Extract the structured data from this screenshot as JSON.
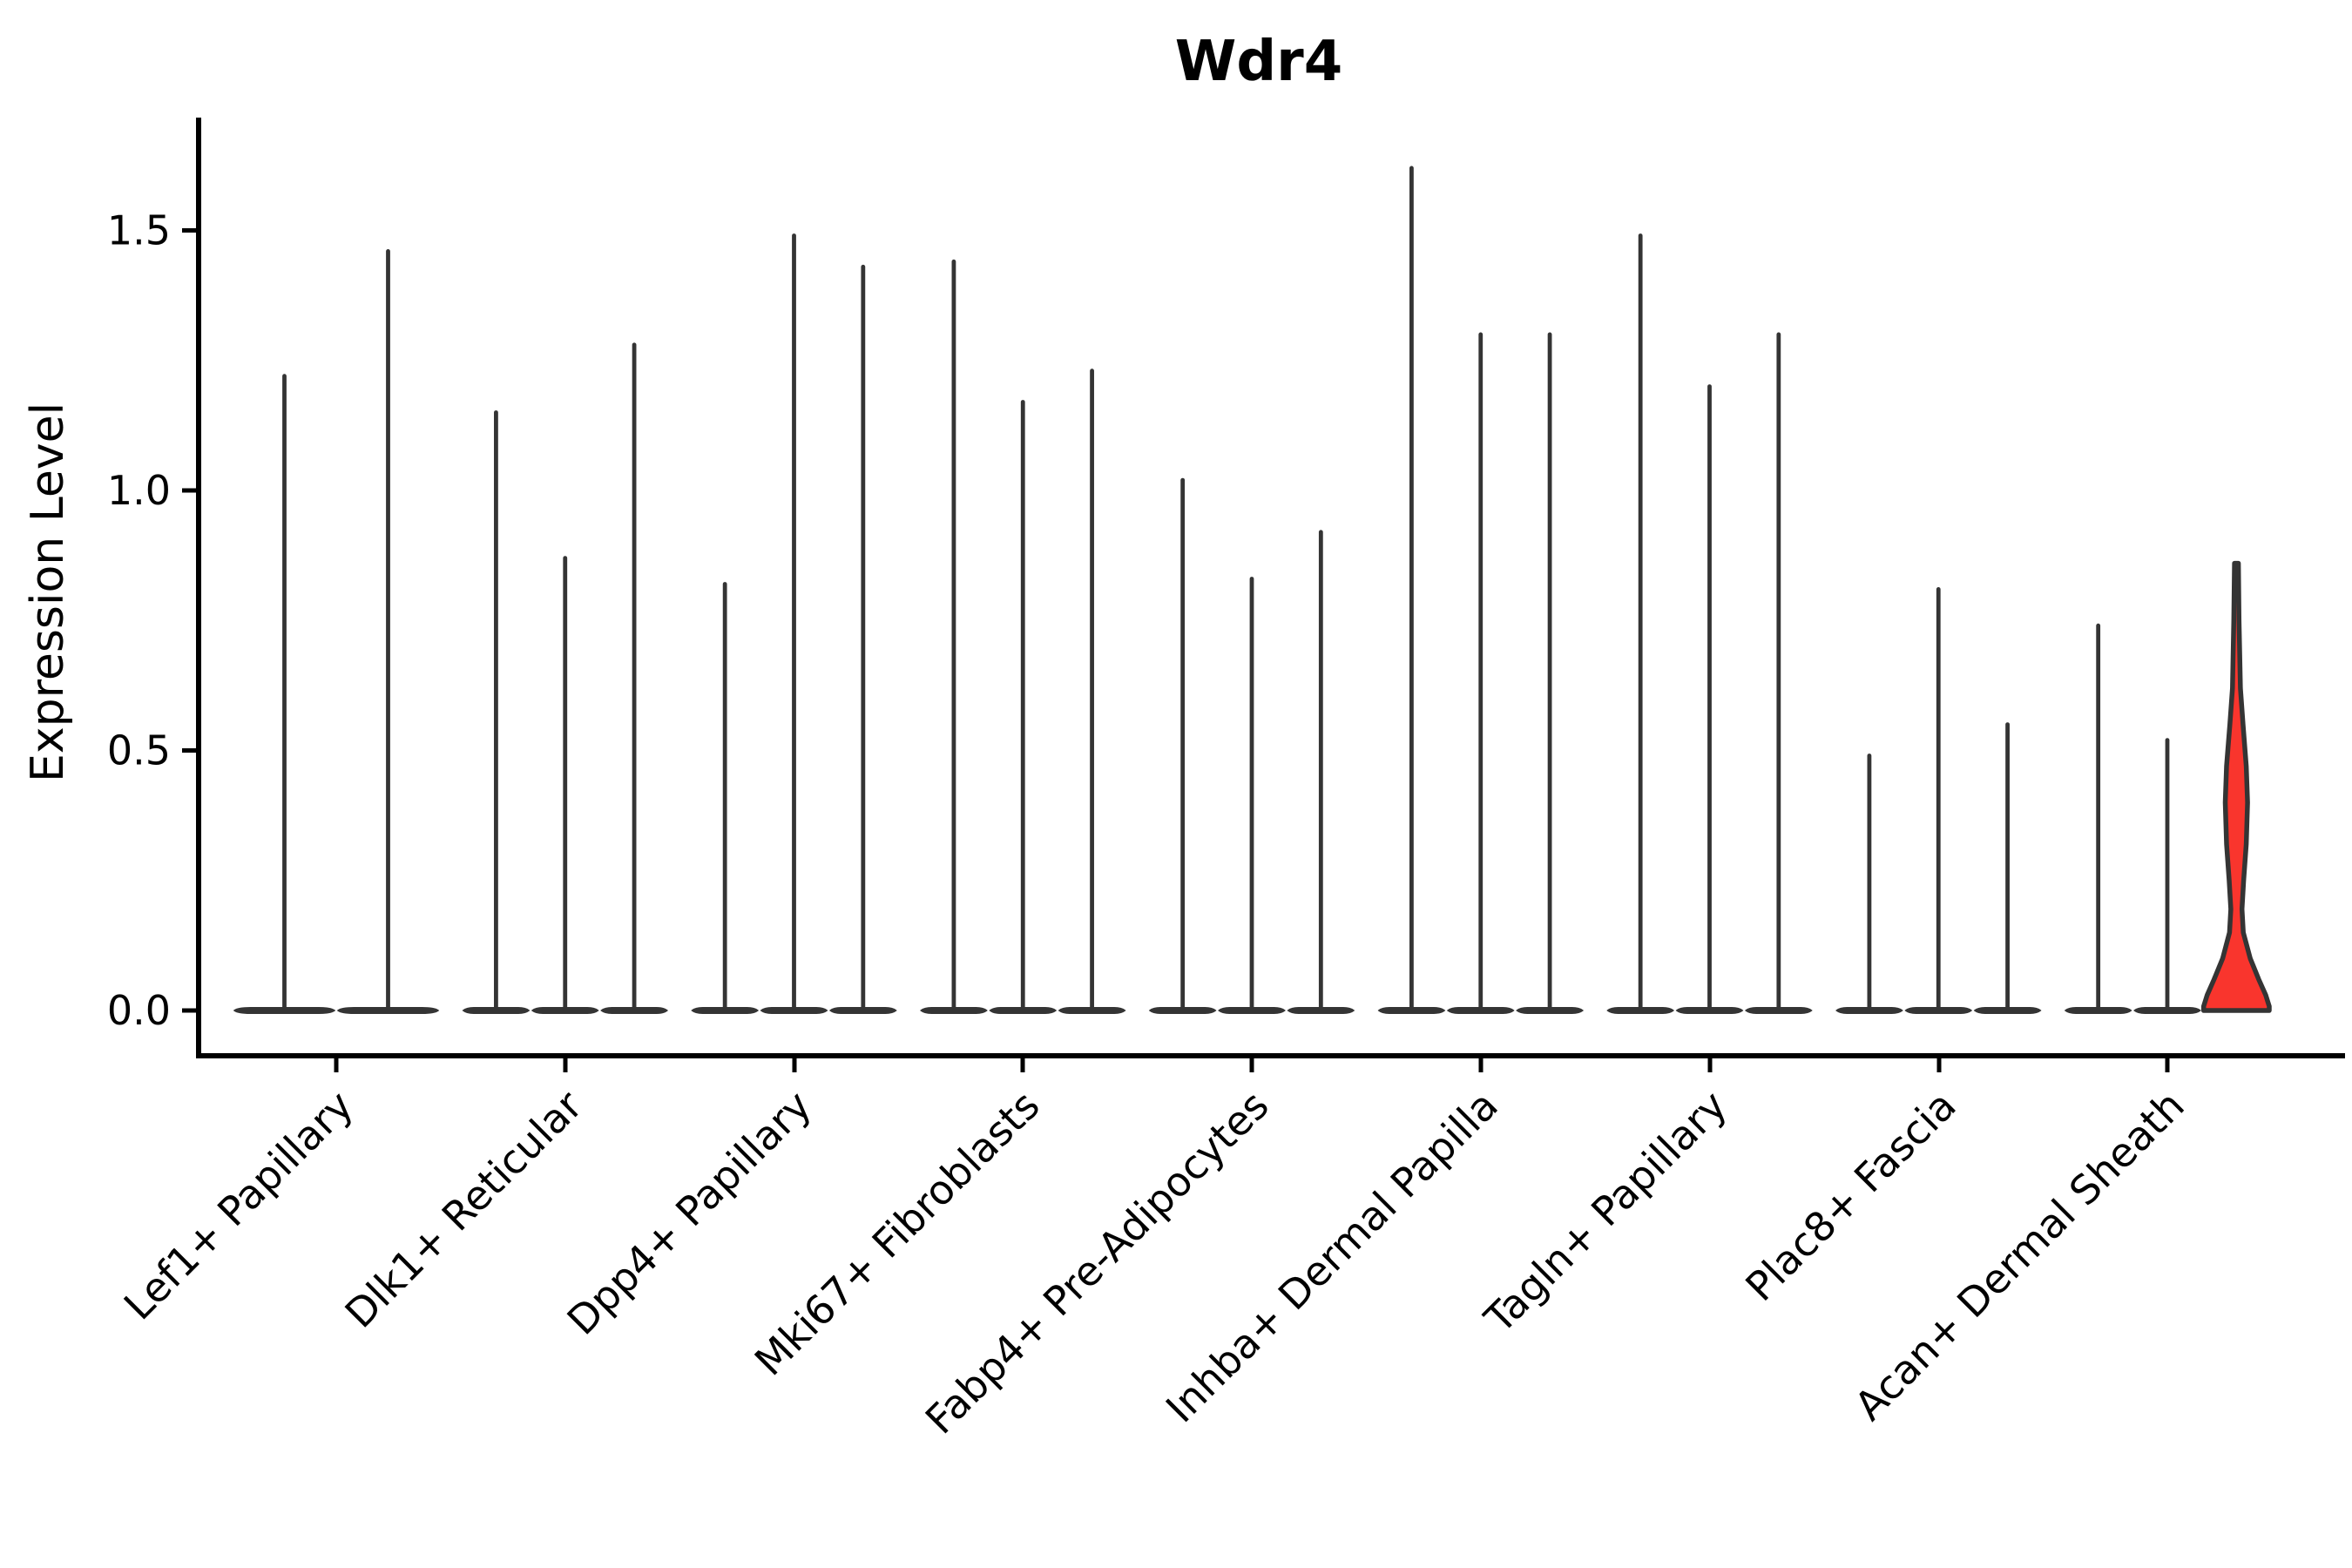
{
  "title": "Wdr4",
  "y_axis": {
    "label": "Expression Level",
    "tick_labels": [
      "0.0",
      "0.5",
      "1.0",
      "1.5"
    ]
  },
  "chart_data": {
    "type": "violin",
    "title": "Wdr4",
    "xlabel": "",
    "ylabel": "Expression Level",
    "ylim": [
      -0.09,
      1.72
    ],
    "yticks": [
      0.0,
      0.5,
      1.0,
      1.5
    ],
    "ytick_labels": [
      "0.0",
      "0.5",
      "1.0",
      "1.5"
    ],
    "grid": false,
    "legend": "none",
    "outline_color": "#343434",
    "highlight_fill": "#F9352D",
    "categories": [
      "Lef1+ Papillary",
      "Dlk1+ Reticular",
      "Dpp4+ Papillary",
      "Mki67+ Fibroblasts",
      "Fabp4+ Pre-Adipocytes",
      "Inhba+ Dermal Papilla",
      "Tagln+ Papillary",
      "Plac8+ Fascia",
      "Acan+ Dermal Sheath"
    ],
    "groups": [
      {
        "category": "Lef1+ Papillary",
        "violins": [
          {
            "max": 1.22
          },
          {
            "max": 1.46
          }
        ]
      },
      {
        "category": "Dlk1+ Reticular",
        "violins": [
          {
            "max": 1.15
          },
          {
            "max": 0.87
          },
          {
            "max": 1.28
          }
        ]
      },
      {
        "category": "Dpp4+ Papillary",
        "violins": [
          {
            "max": 0.82
          },
          {
            "max": 1.49
          },
          {
            "max": 1.43
          }
        ]
      },
      {
        "category": "Mki67+ Fibroblasts",
        "violins": [
          {
            "max": 1.44
          },
          {
            "max": 1.17
          },
          {
            "max": 1.23
          }
        ]
      },
      {
        "category": "Fabp4+ Pre-Adipocytes",
        "violins": [
          {
            "max": 1.02
          },
          {
            "max": 0.83
          },
          {
            "max": 0.92
          }
        ]
      },
      {
        "category": "Inhba+ Dermal Papilla",
        "violins": [
          {
            "max": 1.62
          },
          {
            "max": 1.3
          },
          {
            "max": 1.3
          }
        ]
      },
      {
        "category": "Tagln+ Papillary",
        "violins": [
          {
            "max": 1.49
          },
          {
            "max": 1.2
          },
          {
            "max": 1.3
          }
        ]
      },
      {
        "category": "Plac8+ Fascia",
        "violins": [
          {
            "max": 0.49
          },
          {
            "max": 0.81
          },
          {
            "max": 0.55
          }
        ]
      },
      {
        "category": "Acan+ Dermal Sheath",
        "violins": [
          {
            "max": 0.74
          },
          {
            "max": 0.52
          },
          {
            "max": 0.86,
            "fill": "#F9352D",
            "profile": [
              [
                0.86,
                0.06
              ],
              [
                0.75,
                0.08
              ],
              [
                0.62,
                0.12
              ],
              [
                0.55,
                0.2
              ],
              [
                0.47,
                0.3
              ],
              [
                0.4,
                0.34
              ],
              [
                0.32,
                0.3
              ],
              [
                0.25,
                0.22
              ],
              [
                0.195,
                0.17
              ],
              [
                0.15,
                0.21
              ],
              [
                0.1,
                0.42
              ],
              [
                0.06,
                0.68
              ],
              [
                0.03,
                0.89
              ],
              [
                0.008,
                1.0
              ],
              [
                0.0,
                1.0
              ]
            ]
          }
        ]
      }
    ]
  }
}
